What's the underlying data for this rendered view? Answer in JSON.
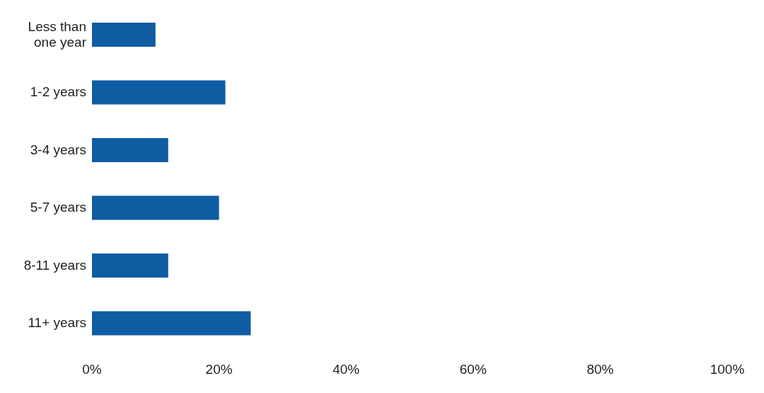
{
  "chart_data": {
    "type": "bar",
    "orientation": "horizontal",
    "categories": [
      "Less than one year",
      "1-2 years",
      "3-4 years",
      "5-7 years",
      "8-11 years",
      "11+ years"
    ],
    "values": [
      10,
      21,
      12,
      20,
      12,
      25
    ],
    "color": "#0f5ca3",
    "xlim": [
      0,
      100
    ],
    "xticks": [
      {
        "value": 0,
        "label": "0%"
      },
      {
        "value": 20,
        "label": "20%"
      },
      {
        "value": 40,
        "label": "40%"
      },
      {
        "value": 60,
        "label": "60%"
      },
      {
        "value": 80,
        "label": "80%"
      },
      {
        "value": 100,
        "label": "100%"
      }
    ],
    "grid": false,
    "legend": false
  }
}
